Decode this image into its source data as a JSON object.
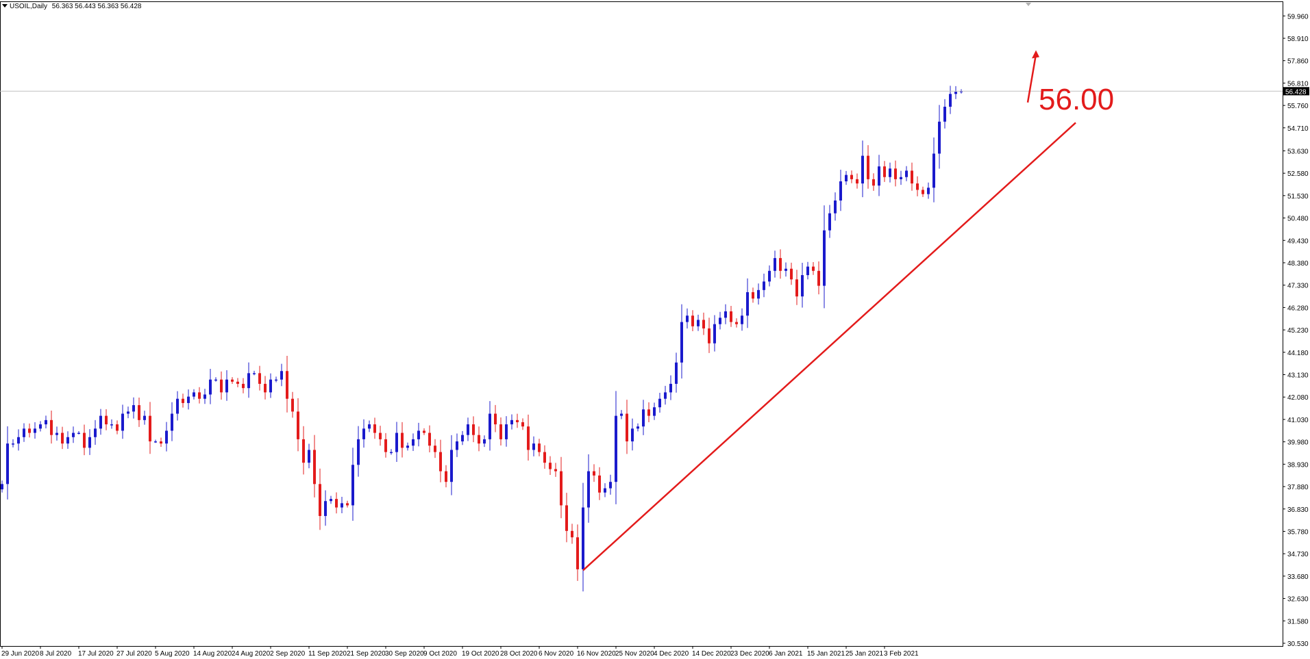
{
  "header": {
    "symbol": "USOIL,Daily",
    "ohlc": "56.363 56.443 56.363 56.428"
  },
  "colors": {
    "bull_candle": "#1a1acc",
    "bear_candle": "#e31b1b",
    "annotation": "#e31b1b",
    "grid_line": "#c0c0c0",
    "price_marker_bg": "#000000"
  },
  "annotation": {
    "label": "56.00"
  },
  "current_price_label": "56.428",
  "chart_data": {
    "type": "candlestick",
    "title": "USOIL,Daily",
    "xlabel": "",
    "ylabel": "",
    "ylim": [
      30.53,
      60.45
    ],
    "current_price": 56.428,
    "y_ticks": [
      "59.960",
      "58.910",
      "57.860",
      "56.810",
      "55.760",
      "54.710",
      "53.630",
      "52.580",
      "51.530",
      "50.480",
      "49.430",
      "48.380",
      "47.330",
      "46.280",
      "45.230",
      "44.180",
      "43.130",
      "42.080",
      "41.030",
      "39.980",
      "38.930",
      "37.880",
      "36.830",
      "35.780",
      "34.730",
      "33.680",
      "32.630",
      "31.580",
      "30.530"
    ],
    "x_ticks": [
      {
        "label": "29 Jun 2020",
        "bar": 0
      },
      {
        "label": "8 Jul 2020",
        "bar": 7
      },
      {
        "label": "17 Jul 2020",
        "bar": 14
      },
      {
        "label": "27 Jul 2020",
        "bar": 21
      },
      {
        "label": "5 Aug 2020",
        "bar": 28
      },
      {
        "label": "14 Aug 2020",
        "bar": 35
      },
      {
        "label": "24 Aug 2020",
        "bar": 42
      },
      {
        "label": "2 Sep 2020",
        "bar": 49
      },
      {
        "label": "11 Sep 2020",
        "bar": 56
      },
      {
        "label": "21 Sep 2020",
        "bar": 63
      },
      {
        "label": "30 Sep 2020",
        "bar": 70
      },
      {
        "label": "9 Oct 2020",
        "bar": 77
      },
      {
        "label": "19 Oct 2020",
        "bar": 84
      },
      {
        "label": "28 Oct 2020",
        "bar": 91
      },
      {
        "label": "6 Nov 2020",
        "bar": 98
      },
      {
        "label": "16 Nov 2020",
        "bar": 105
      },
      {
        "label": "25 Nov 2020",
        "bar": 112
      },
      {
        "label": "4 Dec 2020",
        "bar": 119
      },
      {
        "label": "14 Dec 2020",
        "bar": 126
      },
      {
        "label": "23 Dec 2020",
        "bar": 133
      },
      {
        "label": "6 Jan 2021",
        "bar": 140
      },
      {
        "label": "15 Jan 2021",
        "bar": 147
      },
      {
        "label": "25 Jan 2021",
        "bar": 154
      },
      {
        "label": "3 Feb 2021",
        "bar": 161
      }
    ],
    "closes": [
      38.0,
      39.9,
      39.9,
      40.2,
      40.6,
      40.4,
      40.6,
      40.8,
      41.0,
      40.3,
      40.4,
      39.9,
      40.2,
      40.4,
      40.4,
      39.7,
      40.2,
      40.6,
      41.2,
      40.8,
      40.8,
      40.5,
      41.3,
      41.4,
      41.7,
      41.0,
      41.2,
      40.0,
      40.0,
      39.9,
      40.5,
      41.3,
      42.0,
      41.8,
      42.1,
      42.3,
      42.0,
      42.2,
      42.9,
      42.9,
      42.3,
      42.9,
      42.8,
      42.7,
      42.5,
      43.2,
      43.2,
      42.7,
      42.3,
      42.9,
      42.9,
      43.3,
      42.0,
      41.4,
      40.1,
      39.0,
      39.6,
      38.0,
      36.5,
      37.2,
      37.3,
      36.9,
      37.1,
      37.0,
      38.9,
      40.1,
      40.6,
      40.8,
      40.4,
      40.1,
      39.5,
      39.5,
      40.4,
      39.7,
      39.8,
      40.1,
      40.5,
      40.4,
      39.8,
      39.5,
      38.6,
      38.1,
      39.6,
      40.0,
      40.3,
      40.8,
      40.3,
      39.9,
      40.1,
      41.3,
      40.8,
      40.1,
      40.8,
      41.0,
      40.9,
      40.7,
      39.6,
      39.9,
      39.5,
      39.0,
      38.7,
      38.6,
      37.0,
      35.8,
      35.5,
      34.0,
      36.9,
      38.6,
      38.4,
      37.6,
      37.8,
      38.1,
      41.2,
      41.3,
      40.0,
      40.6,
      40.7,
      41.5,
      41.2,
      41.6,
      42.0,
      42.3,
      42.7,
      43.7,
      45.6,
      45.9,
      45.4,
      45.7,
      45.3,
      44.6,
      45.5,
      45.8,
      46.1,
      45.6,
      45.5,
      45.9,
      47.0,
      46.7,
      47.1,
      47.5,
      48.0,
      48.6,
      48.0,
      48.1,
      47.6,
      46.8,
      47.8,
      48.2,
      48.0,
      47.3,
      49.9,
      50.7,
      51.3,
      52.2,
      52.5,
      52.3,
      52.1,
      53.4,
      52.3,
      52.0,
      52.9,
      52.4,
      52.8,
      52.3,
      52.4,
      52.7,
      52.1,
      51.8,
      51.6,
      51.9,
      53.5,
      55.0,
      55.7,
      56.3,
      56.4,
      56.43
    ]
  }
}
